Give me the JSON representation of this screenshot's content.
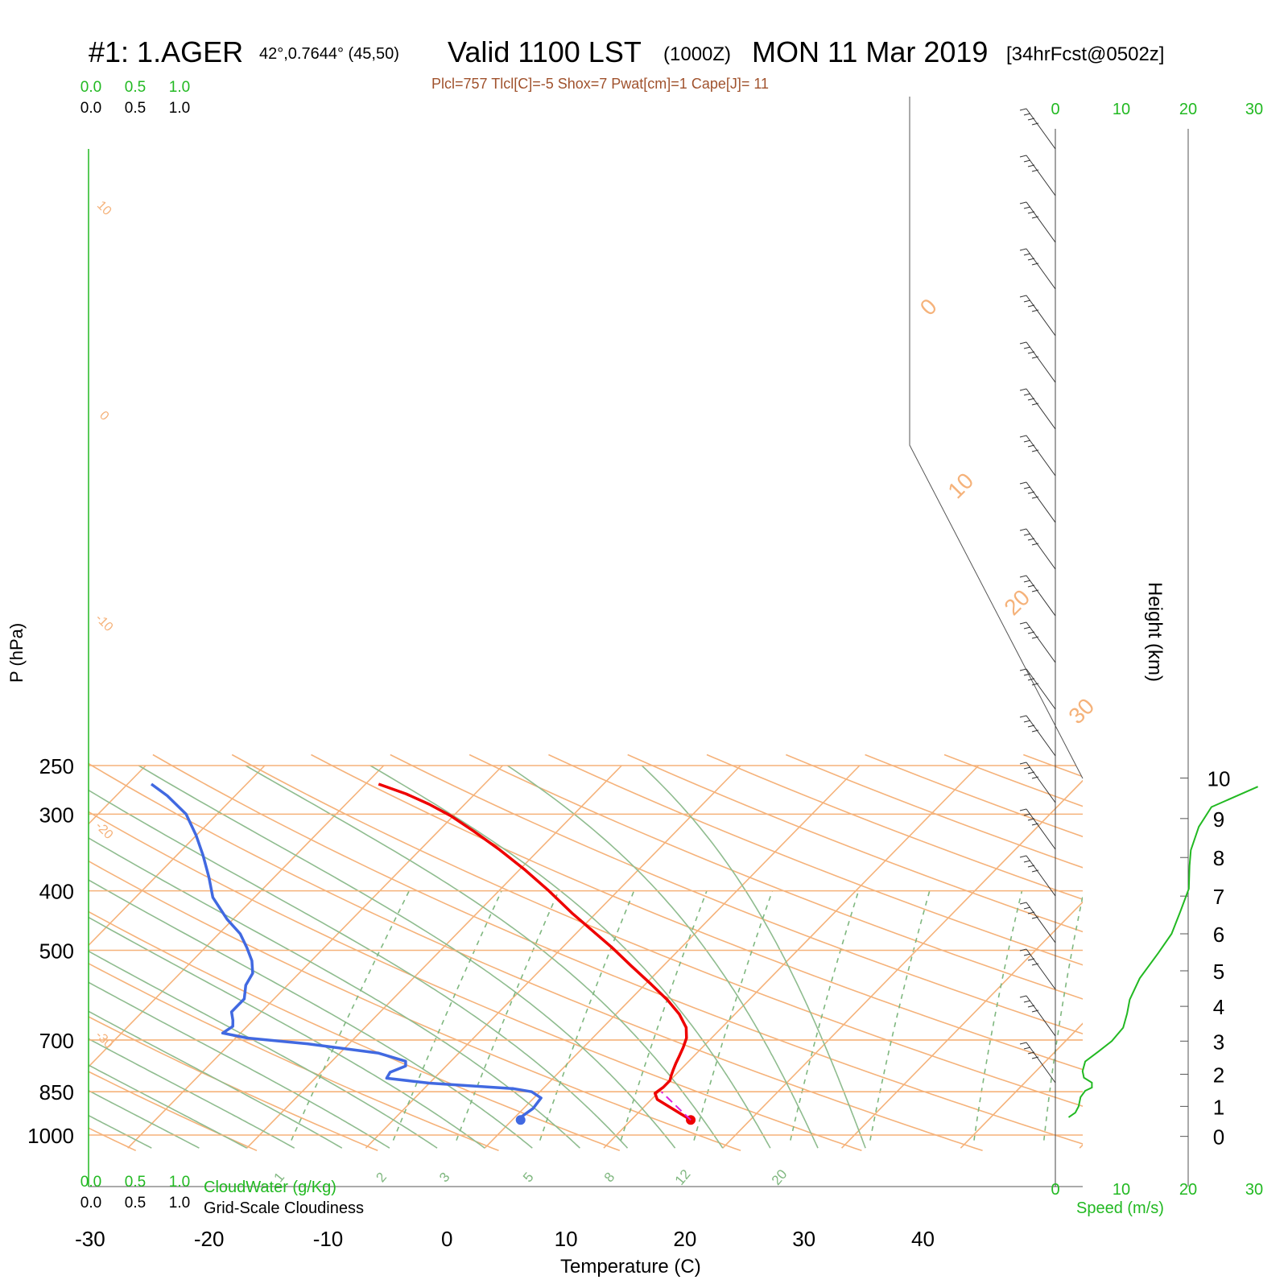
{
  "header": {
    "station": "#1: 1.AGER",
    "coords": "42°,0.7644° (45,50)",
    "valid": "Valid 1100 LST",
    "zulu": "(1000Z)",
    "date": "MON 11 Mar 2019",
    "forecast": "[34hrFcst@0502z]",
    "indices": "Plcl=757 Tlcl[C]=-5 Shox=7 Pwat[cm]=1 Cape[J]= 11"
  },
  "axes": {
    "x_label": "Temperature (C)",
    "y_label": "P (hPa)",
    "height_label": "Height (km)",
    "speed_label": "Speed (m/s)",
    "cloudwater_label": "CloudWater (g/Kg)",
    "cloudiness_label": "Grid-Scale Cloudiness"
  },
  "colors": {
    "isotherm": "#f5b27a",
    "dry_adiabat": "#f5b27a",
    "moist_adiabat": "#8fbc8f",
    "mixing_ratio": "#7fb77f",
    "temperature": "#ee0000",
    "dewpoint": "#4169e1",
    "parcel": "#dd22dd",
    "speed": "#22b922",
    "text_green": "#22b922",
    "text_brown": "#a0522d"
  },
  "chart_data": {
    "type": "skew-t log-p",
    "xlabel": "Temperature (C)",
    "ylabel": "P (hPa)",
    "xlim": [
      -30,
      40
    ],
    "pressure_range": [
      1050,
      250
    ],
    "x_ticks": [
      "-30",
      "-20",
      "-10",
      "0",
      "10",
      "20",
      "30",
      "40"
    ],
    "pressure_ticks": [
      "250",
      "300",
      "400",
      "500",
      "700",
      "850",
      "1000"
    ],
    "pressure_values": [
      250,
      300,
      400,
      500,
      700,
      850,
      1000
    ],
    "cloud_scale_green": [
      "0.0",
      "0.5",
      "1.0"
    ],
    "cloud_scale_black": [
      "0.0",
      "0.5",
      "1.0"
    ],
    "skewed_isotherm_labels": [
      {
        "text": "-30",
        "t": -30
      },
      {
        "text": "-20",
        "t": -20
      },
      {
        "text": "-10",
        "t": -10
      },
      {
        "text": "0",
        "t": 0
      },
      {
        "text": "10",
        "t": 10
      },
      {
        "text": "0",
        "t": 0
      },
      {
        "text": "10",
        "t": 10
      },
      {
        "text": "20",
        "t": 20
      },
      {
        "text": "30",
        "t": 30
      }
    ],
    "mixing_ratio_labels": [
      "1",
      "2",
      "3",
      "5",
      "8",
      "12",
      "20"
    ],
    "series": [
      {
        "name": "temperature",
        "points": [
          [
            15.0,
            945
          ],
          [
            10.5,
            875
          ],
          [
            9.8,
            855
          ],
          [
            10.0,
            836
          ],
          [
            10.0,
            815
          ],
          [
            9.7,
            800
          ],
          [
            9.4,
            783
          ],
          [
            9.1,
            765
          ],
          [
            8.8,
            745
          ],
          [
            8.4,
            720
          ],
          [
            7.9,
            695
          ],
          [
            7.0,
            668
          ],
          [
            5.3,
            635
          ],
          [
            3.2,
            603
          ],
          [
            0.5,
            568
          ],
          [
            -2.7,
            530
          ],
          [
            -5.8,
            495
          ],
          [
            -8.9,
            464
          ],
          [
            -12.0,
            435
          ],
          [
            -15.8,
            400
          ],
          [
            -19.5,
            370
          ],
          [
            -23.3,
            343
          ],
          [
            -27.0,
            320
          ],
          [
            -30.2,
            302
          ],
          [
            -33.0,
            289
          ],
          [
            -35.8,
            278
          ],
          [
            -38.9,
            268
          ]
        ]
      },
      {
        "name": "dewpoint",
        "points": [
          [
            0.7,
            945
          ],
          [
            0.5,
            935
          ],
          [
            0.8,
            905
          ],
          [
            0.6,
            870
          ],
          [
            -0.7,
            850
          ],
          [
            -2.5,
            840
          ],
          [
            -10.0,
            823
          ],
          [
            -14.0,
            808
          ],
          [
            -14.2,
            790
          ],
          [
            -13.4,
            772
          ],
          [
            -13.8,
            758
          ],
          [
            -16.8,
            735
          ],
          [
            -23.5,
            710
          ],
          [
            -29.0,
            695
          ],
          [
            -31.5,
            682
          ],
          [
            -31.2,
            665
          ],
          [
            -31.7,
            650
          ],
          [
            -32.5,
            630
          ],
          [
            -32.5,
            600
          ],
          [
            -33.5,
            570
          ],
          [
            -33.9,
            545
          ],
          [
            -35.0,
            520
          ],
          [
            -36.5,
            495
          ],
          [
            -38.2,
            470
          ],
          [
            -40.5,
            445
          ],
          [
            -43.5,
            410
          ],
          [
            -45.5,
            380
          ],
          [
            -47.8,
            350
          ],
          [
            -50.0,
            325
          ],
          [
            -52.6,
            300
          ],
          [
            -55.7,
            280
          ],
          [
            -58.0,
            268
          ]
        ]
      },
      {
        "name": "parcel",
        "points": [
          [
            15.0,
            945
          ],
          [
            10.2,
            850
          ]
        ]
      }
    ],
    "height_axis": {
      "label": "Height (km)",
      "ticks": [
        "0",
        "1",
        "2",
        "3",
        "4",
        "5",
        "6",
        "7",
        "8",
        "9",
        "10"
      ],
      "pressure_at_km": [
        1005,
        898,
        796,
        703,
        617,
        540,
        470,
        408,
        353,
        305,
        262
      ]
    },
    "wind_speed": {
      "label": "Speed (m/s)",
      "xlim": [
        0,
        20
      ],
      "ticks_top": [
        "0",
        "10",
        "20",
        "30"
      ],
      "ticks_bottom": [
        "0",
        "10",
        "20",
        "30"
      ],
      "profile_km_ms": [
        [
          0.65,
          2
        ],
        [
          0.8,
          3
        ],
        [
          1.0,
          3.5
        ],
        [
          1.3,
          3.8
        ],
        [
          1.5,
          4.5
        ],
        [
          1.6,
          5.5
        ],
        [
          1.75,
          5.5
        ],
        [
          1.9,
          4.3
        ],
        [
          2.1,
          4.1
        ],
        [
          2.4,
          4.5
        ],
        [
          2.7,
          6.5
        ],
        [
          3.0,
          8.5
        ],
        [
          3.4,
          10.2
        ],
        [
          3.8,
          10.8
        ],
        [
          4.2,
          11.2
        ],
        [
          4.8,
          12.7
        ],
        [
          5.5,
          15.5
        ],
        [
          6.0,
          17.5
        ],
        [
          6.6,
          18.8
        ],
        [
          7.2,
          20.1
        ],
        [
          7.8,
          20.2
        ],
        [
          8.2,
          20.4
        ],
        [
          8.8,
          21.6
        ],
        [
          9.3,
          23.5
        ],
        [
          9.8,
          30.5
        ]
      ]
    }
  }
}
